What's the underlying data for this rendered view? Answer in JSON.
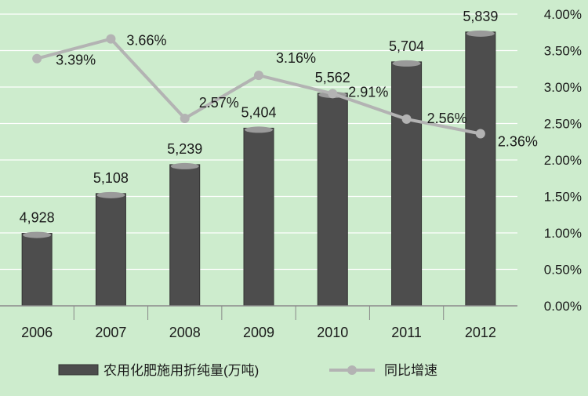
{
  "chart_data": {
    "type": "bar+line",
    "categories": [
      "2006",
      "2007",
      "2008",
      "2009",
      "2010",
      "2011",
      "2012"
    ],
    "series": [
      {
        "name": "农用化肥施用折纯量(万吨)",
        "type": "bar",
        "axis": "left",
        "values": [
          4928,
          5108,
          5239,
          5404,
          5562,
          5704,
          5839
        ],
        "labels": [
          "4,928",
          "5,108",
          "5,239",
          "5,404",
          "5,562",
          "5,704",
          "5,839"
        ]
      },
      {
        "name": "同比增速",
        "type": "line",
        "axis": "right",
        "values": [
          3.39,
          3.66,
          2.57,
          3.16,
          2.91,
          2.56,
          2.36
        ],
        "labels": [
          "3.39%",
          "3.66%",
          "2.57%",
          "3.16%",
          "2.91%",
          "2.56%",
          "2.36%"
        ]
      }
    ],
    "bar_axis": {
      "min": 4600,
      "max": 5920
    },
    "right_axis": {
      "min": 0,
      "max": 4,
      "ticks": [
        "0.00%",
        "0.50%",
        "1.00%",
        "1.50%",
        "2.00%",
        "2.50%",
        "3.00%",
        "3.50%",
        "4.00%"
      ]
    },
    "grid": true,
    "legend_position": "bottom",
    "colors": {
      "background": "#cdeccd",
      "grid": "#ffffff",
      "bar_fill": "#4d4d4d",
      "bar_cap": "#9a9a9a",
      "line": "#b3b3b3",
      "text": "#1a1a1a"
    }
  }
}
